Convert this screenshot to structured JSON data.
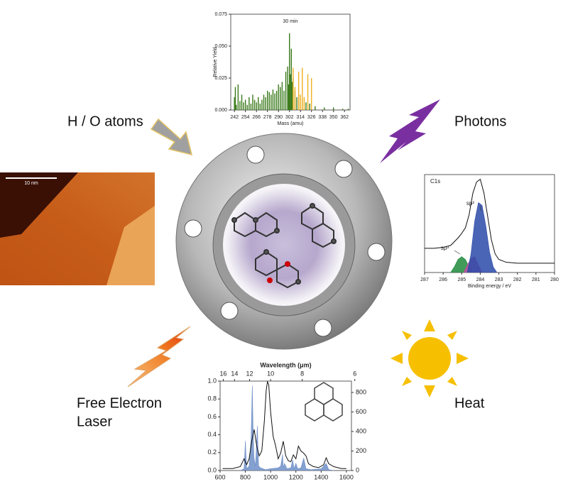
{
  "labels": {
    "h_o_atoms": "H / O atoms",
    "photons": "Photons",
    "free_electron_laser": [
      "Free Electron",
      "Laser"
    ],
    "heat": "Heat"
  },
  "stm": {
    "scale_bar": "10 nm"
  },
  "chart_data": [
    {
      "type": "bar",
      "title": "30 min",
      "xlabel": "Mass (amu)",
      "ylabel": "Relative Yield",
      "xlim": [
        238,
        368
      ],
      "ylim": [
        0,
        0.075
      ],
      "xticks": [
        242,
        254,
        266,
        278,
        290,
        302,
        314,
        326,
        338,
        350,
        362
      ],
      "yticks": [
        {
          "value": 0,
          "label": "0.000"
        },
        {
          "value": 0.025,
          "label": "0.025"
        },
        {
          "value": 0.05,
          "label": "0.050"
        },
        {
          "value": 0.075,
          "label": "0.075"
        }
      ],
      "series": [
        {
          "color": "#3a7a1a",
          "x": [
            242,
            243,
            244,
            246,
            248,
            250,
            252,
            254,
            256,
            258,
            260,
            262,
            264,
            266,
            268,
            270,
            272,
            274,
            276,
            278,
            280,
            282,
            284,
            286,
            288,
            290,
            292,
            294,
            296,
            298,
            300,
            301,
            302,
            303,
            304,
            305,
            306,
            308,
            310,
            312,
            316,
            320,
            324,
            330,
            340,
            350,
            360,
            366
          ],
          "values": [
            0.01,
            0.018,
            0.004,
            0.02,
            0.007,
            0.012,
            0.006,
            0.008,
            0.004,
            0.01,
            0.005,
            0.012,
            0.008,
            0.006,
            0.01,
            0.005,
            0.008,
            0.012,
            0.01,
            0.015,
            0.014,
            0.012,
            0.016,
            0.013,
            0.015,
            0.02,
            0.018,
            0.022,
            0.015,
            0.03,
            0.034,
            0.02,
            0.06,
            0.028,
            0.048,
            0.022,
            0.025,
            0.015,
            0.01,
            0.012,
            0.008,
            0.006,
            0.005,
            0.003,
            0.002,
            0.002,
            0.001,
            0.001
          ]
        },
        {
          "color": "#f0b020",
          "x": [
            306,
            308,
            312,
            314,
            316,
            318,
            322,
            326
          ],
          "values": [
            0.033,
            0.018,
            0.03,
            0.012,
            0.033,
            0.01,
            0.028,
            0.025
          ]
        }
      ]
    },
    {
      "type": "line",
      "title": "C1s",
      "xlabel": "Binding energy / eV",
      "annotations": [
        "sp²",
        "sp³"
      ],
      "xlim": [
        287,
        280
      ],
      "ylim": [
        0,
        1.05
      ],
      "xticks": [
        287,
        286,
        285,
        284,
        283,
        282,
        281,
        280
      ],
      "series": [
        {
          "color": "#1e8a3c",
          "fill": true,
          "x": [
            285.6,
            285.4,
            285.2,
            285.0,
            284.8,
            284.6,
            284.4
          ],
          "values": [
            0,
            0.06,
            0.14,
            0.17,
            0.14,
            0.06,
            0
          ]
        },
        {
          "color": "#c050a0",
          "fill": true,
          "x": [
            284.9,
            284.7,
            284.5,
            284.3,
            284.1,
            283.9
          ],
          "values": [
            0,
            0.08,
            0.15,
            0.17,
            0.08,
            0
          ]
        },
        {
          "color": "#2a4aa8",
          "fill": true,
          "x": [
            284.7,
            284.5,
            284.3,
            284.1,
            283.9,
            283.7,
            283.5,
            283.3,
            283.1
          ],
          "values": [
            0,
            0.2,
            0.55,
            0.75,
            0.72,
            0.5,
            0.22,
            0.06,
            0
          ]
        },
        {
          "color": "#111111",
          "fill": false,
          "x": [
            287,
            286.5,
            286,
            285.6,
            285.2,
            285,
            284.8,
            284.6,
            284.4,
            284.2,
            284.0,
            283.8,
            283.6,
            283.4,
            283.2,
            283,
            282.6,
            282,
            281,
            280
          ],
          "values": [
            0.26,
            0.26,
            0.27,
            0.29,
            0.37,
            0.42,
            0.48,
            0.62,
            0.85,
            0.97,
            1.0,
            0.85,
            0.6,
            0.35,
            0.2,
            0.14,
            0.11,
            0.1,
            0.1,
            0.1
          ]
        }
      ]
    },
    {
      "type": "line",
      "x2label": "Wavelength (μm)",
      "xlim": [
        600,
        1640
      ],
      "ylim": [
        0,
        1.0
      ],
      "y2lim": [
        0,
        916
      ],
      "xticks": [
        600,
        800,
        1000,
        1200,
        1400,
        1600
      ],
      "x2ticks": [
        16,
        14,
        12,
        10,
        8,
        6
      ],
      "yticks": [
        {
          "value": 0,
          "label": "0.0"
        },
        {
          "value": 0.2,
          "label": "0.2"
        },
        {
          "value": 0.4,
          "label": "0.4"
        },
        {
          "value": 0.6,
          "label": "0.6"
        },
        {
          "value": 0.8,
          "label": "0.8"
        },
        {
          "value": 1.0,
          "label": "1.0"
        }
      ],
      "y2ticks": [
        0,
        200,
        400,
        600,
        800
      ],
      "series": [
        {
          "color": "#6f8fc8",
          "fill": true,
          "x": [
            760,
            790,
            800,
            810,
            830,
            845,
            855,
            860,
            868,
            880,
            895,
            900,
            905,
            920,
            960,
            1000,
            1060,
            1080,
            1095,
            1100,
            1110,
            1130,
            1160,
            1175,
            1185,
            1200,
            1215,
            1240,
            1250,
            1262,
            1280,
            1320,
            1400,
            1440,
            1460,
            1500
          ],
          "values": [
            0,
            0.02,
            0.33,
            0.02,
            0.05,
            0.35,
            0.95,
            0.55,
            0.15,
            0.05,
            0.5,
            0.25,
            0.05,
            0.03,
            0.01,
            0.02,
            0.03,
            0.05,
            0.18,
            0.03,
            0.08,
            0.02,
            0.03,
            0.12,
            0.02,
            0.08,
            0.02,
            0.03,
            0.08,
            0.14,
            0.02,
            0.01,
            0.02,
            0.08,
            0.01,
            0
          ]
        },
        {
          "color": "#111111",
          "fill": false,
          "axis": "y2",
          "x": [
            620,
            700,
            760,
            790,
            810,
            830,
            850,
            870,
            890,
            910,
            930,
            950,
            965,
            975,
            985,
            1000,
            1020,
            1040,
            1060,
            1080,
            1100,
            1120,
            1140,
            1160,
            1180,
            1200,
            1220,
            1240,
            1260,
            1280,
            1300,
            1340,
            1380,
            1420,
            1440,
            1460,
            1500,
            1560,
            1600
          ],
          "values": [
            20,
            20,
            40,
            120,
            60,
            120,
            300,
            420,
            250,
            150,
            200,
            500,
            820,
            910,
            880,
            600,
            350,
            250,
            120,
            180,
            300,
            150,
            100,
            90,
            160,
            120,
            250,
            200,
            180,
            150,
            70,
            40,
            30,
            60,
            130,
            70,
            40,
            20,
            20
          ]
        }
      ]
    }
  ]
}
